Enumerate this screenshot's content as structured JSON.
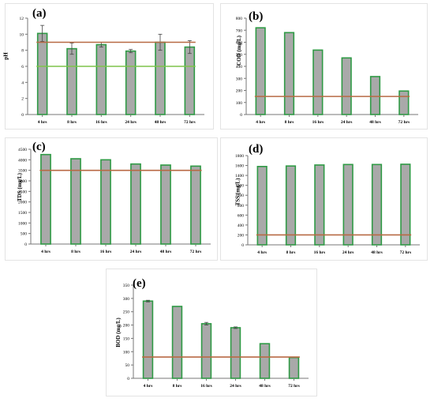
{
  "chart_data": [
    {
      "id": "a",
      "type": "bar",
      "panel_label": "(a)",
      "ylabel": "pH",
      "categories": [
        "4 hrs",
        "8 hrs",
        "16 hrs",
        "24 hrs",
        "48 hrs",
        "72 hrs"
      ],
      "values": [
        10.1,
        8.2,
        8.7,
        7.9,
        9.0,
        8.4
      ],
      "errors": [
        1.0,
        0.7,
        0.3,
        0.2,
        1.0,
        0.8
      ],
      "ylim": [
        0,
        12
      ],
      "yticks": [
        0,
        2,
        4,
        6,
        8,
        10,
        12
      ],
      "reference_lines": [
        {
          "value": 9,
          "color": "#b86a44"
        },
        {
          "value": 6,
          "color": "#7fc44a"
        }
      ]
    },
    {
      "id": "b",
      "type": "bar",
      "panel_label": "(b)",
      "ylabel": "COD (mg/L)",
      "categories": [
        "4 hrs",
        "8 hrs",
        "16 hrs",
        "24 hrs",
        "48 hrs",
        "72 hrs"
      ],
      "values": [
        720,
        680,
        535,
        470,
        315,
        195
      ],
      "errors": [
        0,
        0,
        0,
        0,
        0,
        0
      ],
      "ylim": [
        0,
        800
      ],
      "yticks": [
        0,
        100,
        200,
        300,
        400,
        500,
        600,
        700,
        800
      ],
      "reference_lines": [
        {
          "value": 150,
          "color": "#b86a44"
        }
      ]
    },
    {
      "id": "c",
      "type": "bar",
      "panel_label": "(c)",
      "ylabel": "TDS (mg/L)",
      "categories": [
        "4 hrs",
        "8 hrs",
        "16 hrs",
        "24 hrs",
        "48 hrs",
        "72 hrs"
      ],
      "values": [
        4250,
        4050,
        4000,
        3800,
        3750,
        3700
      ],
      "errors": [
        0,
        0,
        0,
        0,
        0,
        0
      ],
      "ylim": [
        0,
        4500
      ],
      "yticks": [
        0,
        500,
        1000,
        1500,
        2000,
        2500,
        3000,
        3500,
        4000,
        4500
      ],
      "reference_lines": [
        {
          "value": 3500,
          "color": "#b86a44"
        }
      ]
    },
    {
      "id": "d",
      "type": "bar",
      "panel_label": "(d)",
      "ylabel": "TSS (mg/L)",
      "categories": [
        "4 hrs",
        "8 hrs",
        "16 hrs",
        "24 hrs",
        "48 hrs",
        "72 hrs"
      ],
      "values": [
        1580,
        1590,
        1610,
        1620,
        1620,
        1625
      ],
      "errors": [
        0,
        0,
        0,
        0,
        0,
        0
      ],
      "ylim": [
        0,
        1800
      ],
      "yticks": [
        0,
        200,
        400,
        600,
        800,
        1000,
        1200,
        1400,
        1600,
        1800
      ],
      "reference_lines": [
        {
          "value": 200,
          "color": "#b86a44"
        }
      ]
    },
    {
      "id": "e",
      "type": "bar",
      "panel_label": "(e)",
      "ylabel": "BOD (mg/L)",
      "categories": [
        "4 hrs",
        "8 hrs",
        "16 hrs",
        "24 hrs",
        "48 hrs",
        "72 hrs"
      ],
      "values": [
        290,
        270,
        205,
        190,
        130,
        78
      ],
      "errors": [
        3,
        0,
        5,
        3,
        0,
        0
      ],
      "ylim": [
        0,
        350
      ],
      "yticks": [
        0,
        50,
        100,
        150,
        200,
        250,
        300,
        350
      ],
      "reference_lines": [
        {
          "value": 80,
          "color": "#b86a44"
        }
      ]
    }
  ],
  "colors": {
    "bar_fill": "#a9a9a9",
    "bar_edge": "#2f9a45",
    "axis": "#777777",
    "error_bar": "#444444"
  }
}
